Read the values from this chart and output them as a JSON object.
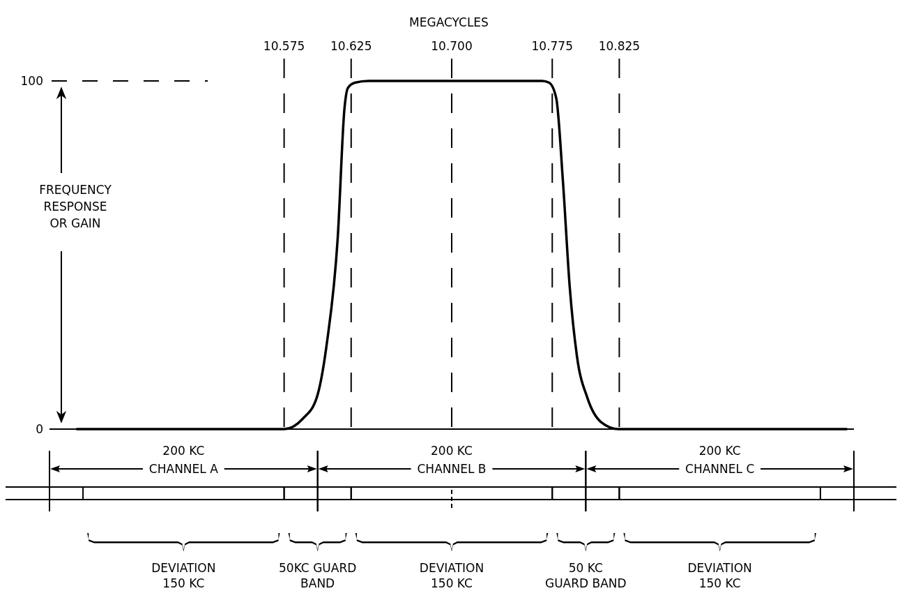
{
  "chart_data": {
    "type": "line",
    "xlabel": "MEGACYCLES",
    "ylabel": "FREQUENCY RESPONSE OR GAIN",
    "xlim": [
      10.4,
      11.0
    ],
    "ylim": [
      0,
      100
    ],
    "xticks": [
      10.575,
      10.625,
      {
        "value": 10.7,
        "label": "10.700"
      },
      10.775,
      10.825
    ],
    "yticks": [
      0,
      100
    ],
    "grid": "x",
    "marker": "none",
    "line_style": "solid",
    "series": [
      {
        "color": "#000000",
        "x": [
          10.42,
          10.575,
          10.589,
          10.5993,
          10.607,
          10.615,
          10.62,
          10.6226,
          10.6278,
          10.638,
          10.7675,
          10.7727,
          10.778,
          10.783,
          10.788,
          10.7934,
          10.8012,
          10.8115,
          10.8245,
          10.995
        ],
        "values": [
          0,
          0,
          3,
          9,
          25,
          55,
          92,
          98,
          99.5,
          100,
          100,
          99.5,
          95,
          71,
          41,
          21,
          9,
          2,
          0,
          0
        ]
      }
    ],
    "annotations": [
      "200 KC CHANNEL A",
      "200 KC CHANNEL B",
      "200 KC CHANNEL C",
      "DEVIATION 150 KC",
      "50KC GUARD BAND",
      "DEVIATION 150 KC",
      "50 KC GUARD BAND",
      "DEVIATION 150 KC"
    ]
  }
}
